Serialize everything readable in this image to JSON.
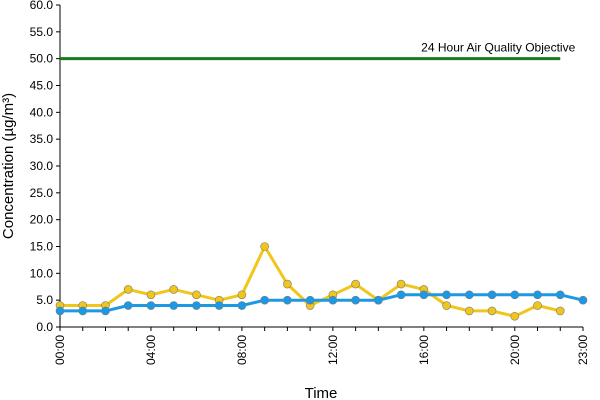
{
  "chart_data": {
    "type": "line",
    "title": "",
    "xlabel": "Time",
    "ylabel": "Concentration (µg/m³)",
    "ylim": [
      0,
      60
    ],
    "y_ticks": [
      "0.0",
      "5.0",
      "10.0",
      "15.0",
      "20.0",
      "25.0",
      "30.0",
      "35.0",
      "40.0",
      "45.0",
      "50.0",
      "55.0",
      "60.0"
    ],
    "x_ticks": [
      "00:00",
      "04:00",
      "08:00",
      "12:00",
      "16:00",
      "20:00",
      "23:00"
    ],
    "x_tick_hours": [
      0,
      4,
      8,
      12,
      16,
      20,
      23
    ],
    "grid": false,
    "x": [
      0,
      1,
      2,
      3,
      4,
      5,
      6,
      7,
      8,
      9,
      10,
      11,
      12,
      13,
      14,
      15,
      16,
      17,
      18,
      19,
      20,
      21,
      22,
      23
    ],
    "series": [
      {
        "color": "#f0c61a",
        "values": [
          4,
          4,
          4,
          7,
          6,
          7,
          6,
          5,
          6,
          15,
          8,
          4,
          6,
          8,
          5,
          8,
          7,
          4,
          3,
          3,
          2,
          4,
          3,
          null
        ]
      },
      {
        "color": "#1a9ae6",
        "values": [
          3,
          3,
          3,
          4,
          4,
          4,
          4,
          4,
          4,
          5,
          5,
          5,
          5,
          5,
          5,
          6,
          6,
          6,
          6,
          6,
          6,
          6,
          6,
          5
        ]
      }
    ],
    "reference_line": {
      "label": "24 Hour Air Quality Objective",
      "value": 50,
      "color": "#1a7a1a",
      "x_end": 22
    }
  }
}
